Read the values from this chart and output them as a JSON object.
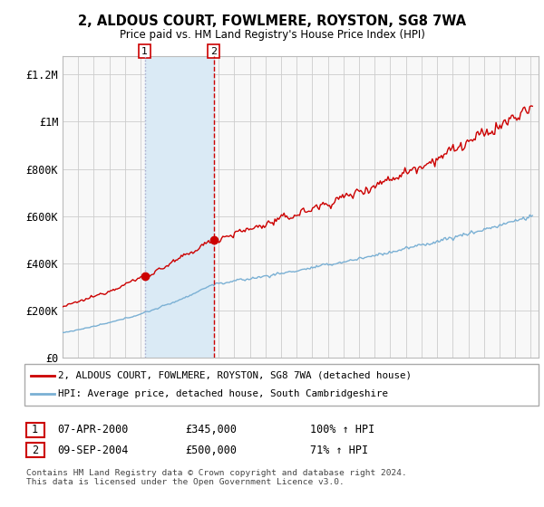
{
  "title": "2, ALDOUS COURT, FOWLMERE, ROYSTON, SG8 7WA",
  "subtitle": "Price paid vs. HM Land Registry's House Price Index (HPI)",
  "ylabel_ticks": [
    0,
    200000,
    400000,
    600000,
    800000,
    1000000,
    1200000
  ],
  "ylabel_labels": [
    "£0",
    "£200K",
    "£400K",
    "£600K",
    "£800K",
    "£1M",
    "£1.2M"
  ],
  "ylim": [
    0,
    1280000
  ],
  "xlim_start": 1995.0,
  "xlim_end": 2025.5,
  "sale1_x": 2000.27,
  "sale1_y": 345000,
  "sale2_x": 2004.69,
  "sale2_y": 500000,
  "red_color": "#cc0000",
  "blue_color": "#7ab0d4",
  "shade_color": "#daeaf5",
  "plot_bg": "#f8f8f8",
  "grid_color": "#cccccc",
  "legend_line1": "2, ALDOUS COURT, FOWLMERE, ROYSTON, SG8 7WA (detached house)",
  "legend_line2": "HPI: Average price, detached house, South Cambridgeshire",
  "sale1_date": "07-APR-2000",
  "sale1_price": "£345,000",
  "sale1_hpi": "100% ↑ HPI",
  "sale2_date": "09-SEP-2004",
  "sale2_price": "£500,000",
  "sale2_hpi": "71% ↑ HPI",
  "footnote": "Contains HM Land Registry data © Crown copyright and database right 2024.\nThis data is licensed under the Open Government Licence v3.0."
}
